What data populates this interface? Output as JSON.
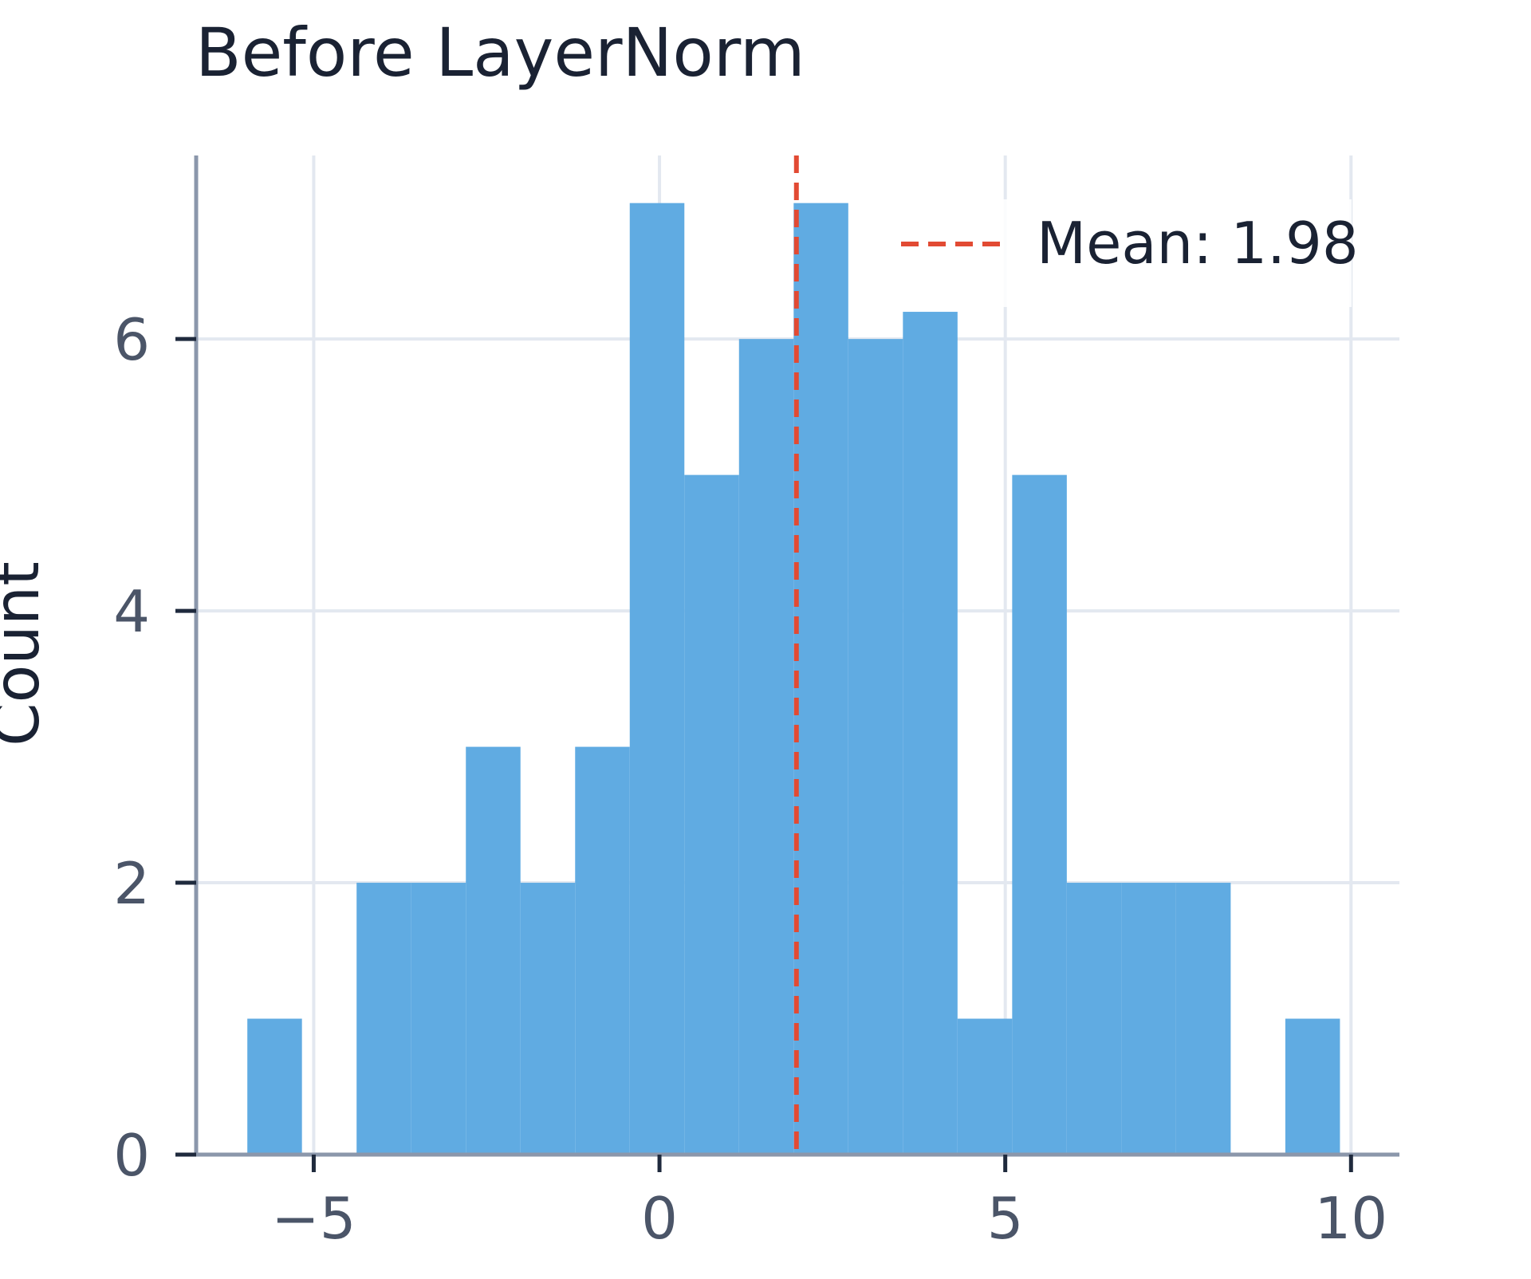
{
  "chart_data": {
    "type": "bar",
    "title": "Before LayerNorm",
    "xlabel": "",
    "ylabel": "Count",
    "xlim": [
      -6.7,
      10.7
    ],
    "ylim": [
      0,
      7.35
    ],
    "xticks": [
      -5,
      0,
      5,
      10
    ],
    "yticks": [
      0,
      2,
      4,
      6
    ],
    "xtick_labels": [
      "−5",
      "0",
      "5",
      "10"
    ],
    "ytick_labels": [
      "0",
      "2",
      "4",
      "6"
    ],
    "grid": true,
    "bin_edges": [
      -5.96,
      -5.17,
      -4.38,
      -3.59,
      -2.8,
      -2.01,
      -1.22,
      -0.43,
      0.36,
      1.15,
      1.94,
      2.73,
      3.52,
      4.31,
      5.1,
      5.89,
      6.68,
      7.47,
      8.26,
      9.05,
      9.84
    ],
    "counts": [
      1,
      0,
      2,
      2,
      3,
      2,
      3,
      7,
      5,
      6,
      7,
      6,
      6.2,
      1,
      5,
      2,
      2,
      2,
      0,
      1
    ],
    "bar_color": "#5DA9E1",
    "mean": 1.98,
    "mean_line_color": "#E24A33",
    "legend": {
      "placement": "top-right",
      "entries": [
        {
          "label": "Mean: 1.98",
          "style": "dashed",
          "color": "#E24A33"
        }
      ]
    }
  }
}
